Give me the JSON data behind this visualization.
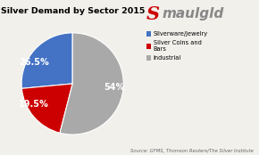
{
  "title": "Silver Demand by Sector 2015",
  "slices": [
    26.5,
    19.5,
    54.0
  ],
  "labels": [
    "26.5%",
    "19.5%",
    "54%"
  ],
  "colors": [
    "#4472C4",
    "#CC0000",
    "#A9A9A9"
  ],
  "legend_labels": [
    "Silverware/Jewelry",
    "Silver Coins and\nBars",
    "Industrial"
  ],
  "source_text": "Source: GFMS, Thomson Reuters/The Silver Institute",
  "background_color": "#F2F0EB",
  "startangle": 90,
  "logo_S_color": "#CC0000",
  "logo_word_color": "#888888",
  "logo_word": "maulgld",
  "logo_S": "S"
}
